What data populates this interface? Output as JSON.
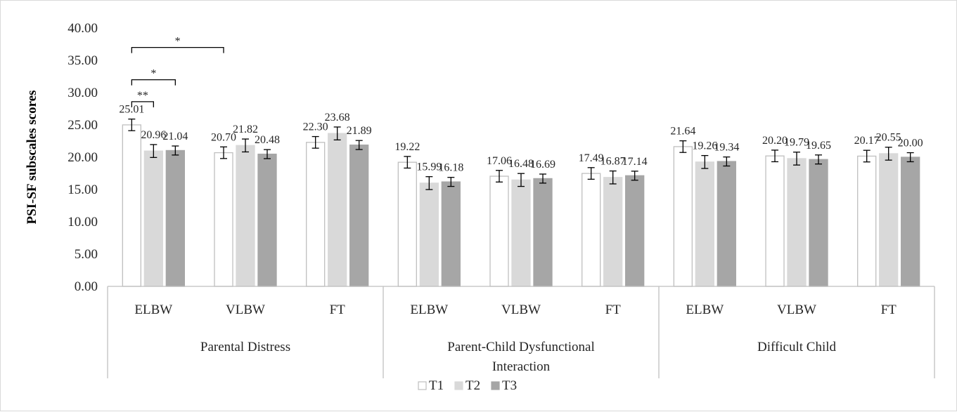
{
  "chart_data": {
    "type": "bar",
    "title": "",
    "ylabel": "PSI-SF subscales scores",
    "ylim": [
      0,
      40
    ],
    "ytick_step": 5,
    "ytick_labels": [
      "0.00",
      "5.00",
      "10.00",
      "15.00",
      "20.00",
      "25.00",
      "30.00",
      "35.00",
      "40.00"
    ],
    "grid": false,
    "legend_position": "bottom",
    "groups": [
      {
        "name": "Parental Distress",
        "categories": [
          "ELBW",
          "VLBW",
          "FT"
        ]
      },
      {
        "name": "Parent-Child Dysfunctional Interaction",
        "name_lines": [
          "Parent-Child Dysfunctional",
          "Interaction"
        ],
        "categories": [
          "ELBW",
          "VLBW",
          "FT"
        ]
      },
      {
        "name": "Difficult Child",
        "categories": [
          "ELBW",
          "VLBW",
          "FT"
        ]
      }
    ],
    "series": [
      {
        "name": "T1",
        "color": "#ffffff",
        "stroke": "#bfbfbf",
        "values": [
          25.01,
          20.7,
          22.3,
          19.22,
          17.06,
          17.49,
          21.64,
          20.2,
          20.17
        ],
        "labels": [
          "25.01",
          "20.70",
          "22.30",
          "19.22",
          "17.06",
          "17.49",
          "21.64",
          "20.20",
          "20.17"
        ],
        "err": [
          0.9,
          0.9,
          0.9,
          0.9,
          0.9,
          0.9,
          0.9,
          0.9,
          0.9
        ]
      },
      {
        "name": "T2",
        "color": "#d9d9d9",
        "stroke": "#d9d9d9",
        "values": [
          20.96,
          21.82,
          23.68,
          15.99,
          16.48,
          16.87,
          19.26,
          19.79,
          20.55
        ],
        "labels": [
          "20.96",
          "21.82",
          "23.68",
          "15.99",
          "16.48",
          "16.87",
          "19.26",
          "19.79",
          "20.55"
        ],
        "err": [
          1.0,
          1.0,
          1.0,
          1.0,
          1.0,
          1.0,
          1.0,
          1.0,
          1.0
        ]
      },
      {
        "name": "T3",
        "color": "#a6a6a6",
        "stroke": "#a6a6a6",
        "values": [
          21.04,
          20.48,
          21.89,
          16.18,
          16.69,
          17.14,
          19.34,
          19.65,
          20.0
        ],
        "labels": [
          "21.04",
          "20.48",
          "21.89",
          "16.18",
          "16.69",
          "17.14",
          "19.34",
          "19.65",
          "20.00"
        ],
        "err": [
          0.7,
          0.7,
          0.7,
          0.7,
          0.7,
          0.7,
          0.7,
          0.7,
          0.7
        ]
      }
    ],
    "annotations": [
      {
        "text": "**",
        "from_series": "T1",
        "to_series": "T2",
        "category_index": 0,
        "y": 28.6
      },
      {
        "text": "*",
        "from_series": "T1",
        "to_series": "T3",
        "category_index": 0,
        "y": 32.0
      },
      {
        "text": "*",
        "from_series": "T1",
        "to_series": "T1",
        "from_category_index": 0,
        "to_category_index": 1,
        "y": 37.0
      }
    ]
  }
}
